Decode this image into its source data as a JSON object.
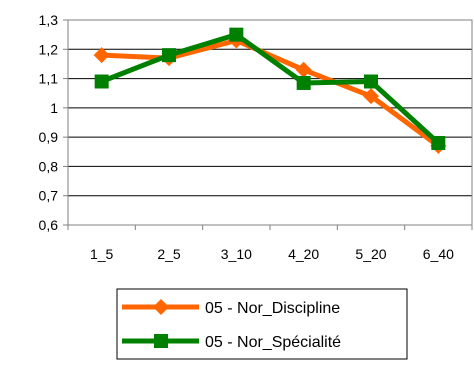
{
  "chart_data": {
    "type": "line",
    "title": "",
    "xlabel": "",
    "ylabel": "",
    "categories": [
      "1_5",
      "2_5",
      "3_10",
      "4_20",
      "5_20",
      "6_40"
    ],
    "ylim": [
      0.6,
      1.3
    ],
    "yticks": [
      "0,6",
      "0,7",
      "0,8",
      "0,9",
      "1",
      "1,1",
      "1,2",
      "1,3"
    ],
    "grid": "horizontal",
    "legend_position": "bottom",
    "series": [
      {
        "name": "05 - Nor_Discipline",
        "values": [
          1.18,
          1.17,
          1.23,
          1.13,
          1.04,
          0.87
        ],
        "color": "#ff6600",
        "marker": "diamond"
      },
      {
        "name": "05 - Nor_Spécialité",
        "values": [
          1.09,
          1.18,
          1.25,
          1.085,
          1.09,
          0.88
        ],
        "color": "#008000",
        "marker": "square"
      }
    ]
  }
}
